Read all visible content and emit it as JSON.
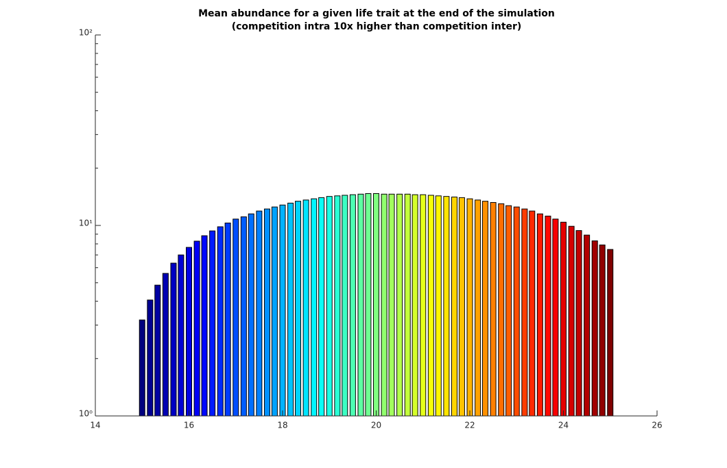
{
  "chart_data": {
    "type": "bar",
    "title": [
      "Mean abundance for a given life trait at the end of the simulation",
      "(competition intra 10x higher than competition inter)"
    ],
    "x": [
      15,
      15.17,
      15.33,
      15.5,
      15.67,
      15.83,
      16,
      16.17,
      16.33,
      16.5,
      16.67,
      16.83,
      17,
      17.17,
      17.33,
      17.5,
      17.67,
      17.83,
      18,
      18.17,
      18.33,
      18.5,
      18.67,
      18.83,
      19,
      19.17,
      19.33,
      19.5,
      19.67,
      19.83,
      20,
      20.17,
      20.33,
      20.5,
      20.67,
      20.83,
      21,
      21.17,
      21.33,
      21.5,
      21.67,
      21.83,
      22,
      22.17,
      22.33,
      22.5,
      22.67,
      22.83,
      23,
      23.17,
      23.33,
      23.5,
      23.67,
      23.83,
      24,
      24.17,
      24.33,
      24.5,
      24.67,
      24.83,
      25
    ],
    "values": [
      3.19,
      4.06,
      4.86,
      5.6,
      6.34,
      7.0,
      7.67,
      8.27,
      8.83,
      9.36,
      9.84,
      10.3,
      10.8,
      11.1,
      11.5,
      11.9,
      12.2,
      12.5,
      12.8,
      13.1,
      13.4,
      13.6,
      13.8,
      14.0,
      14.2,
      14.3,
      14.4,
      14.5,
      14.6,
      14.7,
      14.7,
      14.6,
      14.6,
      14.6,
      14.6,
      14.5,
      14.5,
      14.4,
      14.3,
      14.2,
      14.1,
      14.0,
      13.8,
      13.6,
      13.4,
      13.2,
      13.0,
      12.7,
      12.5,
      12.2,
      11.9,
      11.5,
      11.2,
      10.8,
      10.4,
      9.9,
      9.4,
      8.9,
      8.3,
      7.9,
      7.48
    ],
    "colormap": "jet",
    "xlim": [
      14,
      26
    ],
    "xticks": [
      14,
      16,
      18,
      20,
      22,
      24,
      26
    ],
    "ylim": [
      1,
      100
    ],
    "yscale": "log",
    "yticks": [
      {
        "value": 1,
        "label": "10⁰"
      },
      {
        "value": 10,
        "label": "10¹"
      },
      {
        "value": 100,
        "label": "10²"
      }
    ],
    "yminorticks": [
      2,
      3,
      4,
      5,
      6,
      7,
      8,
      9,
      20,
      30,
      40,
      50,
      60,
      70,
      80,
      90
    ]
  }
}
